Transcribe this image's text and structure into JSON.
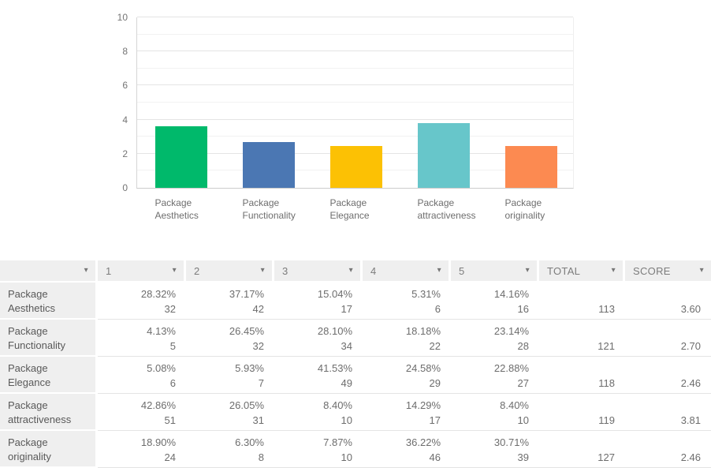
{
  "chart_data": {
    "type": "bar",
    "title": "",
    "xlabel": "",
    "ylabel": "",
    "categories": [
      "Package Aesthetics",
      "Package Functionality",
      "Package Elegance",
      "Package attractiveness",
      "Package originality"
    ],
    "values": [
      3.6,
      2.7,
      2.46,
      3.81,
      2.46
    ],
    "bar_colors": [
      "#00b96b",
      "#4b77b3",
      "#fcc104",
      "#67c6ca",
      "#fc8a51"
    ],
    "ylim": [
      0,
      10
    ],
    "yticks": [
      0,
      2,
      4,
      6,
      8,
      10
    ],
    "grid": "horizontal major+minor",
    "legend_position": "none"
  },
  "table": {
    "dropdown_icon": "▾",
    "headers": [
      "",
      "1",
      "2",
      "3",
      "4",
      "5",
      "TOTAL",
      "SCORE"
    ],
    "rows": [
      {
        "label": "Package Aesthetics",
        "ratings": [
          {
            "pct": "28.32%",
            "count": "32"
          },
          {
            "pct": "37.17%",
            "count": "42"
          },
          {
            "pct": "15.04%",
            "count": "17"
          },
          {
            "pct": "5.31%",
            "count": "6"
          },
          {
            "pct": "14.16%",
            "count": "16"
          }
        ],
        "total": "113",
        "score": "3.60"
      },
      {
        "label": "Package Functionality",
        "ratings": [
          {
            "pct": "4.13%",
            "count": "5"
          },
          {
            "pct": "26.45%",
            "count": "32"
          },
          {
            "pct": "28.10%",
            "count": "34"
          },
          {
            "pct": "18.18%",
            "count": "22"
          },
          {
            "pct": "23.14%",
            "count": "28"
          }
        ],
        "total": "121",
        "score": "2.70"
      },
      {
        "label": "Package Elegance",
        "ratings": [
          {
            "pct": "5.08%",
            "count": "6"
          },
          {
            "pct": "5.93%",
            "count": "7"
          },
          {
            "pct": "41.53%",
            "count": "49"
          },
          {
            "pct": "24.58%",
            "count": "29"
          },
          {
            "pct": "22.88%",
            "count": "27"
          }
        ],
        "total": "118",
        "score": "2.46"
      },
      {
        "label": "Package attractiveness",
        "ratings": [
          {
            "pct": "42.86%",
            "count": "51"
          },
          {
            "pct": "26.05%",
            "count": "31"
          },
          {
            "pct": "8.40%",
            "count": "10"
          },
          {
            "pct": "14.29%",
            "count": "17"
          },
          {
            "pct": "8.40%",
            "count": "10"
          }
        ],
        "total": "119",
        "score": "3.81"
      },
      {
        "label": "Package originality",
        "ratings": [
          {
            "pct": "18.90%",
            "count": "24"
          },
          {
            "pct": "6.30%",
            "count": "8"
          },
          {
            "pct": "7.87%",
            "count": "10"
          },
          {
            "pct": "36.22%",
            "count": "46"
          },
          {
            "pct": "30.71%",
            "count": "39"
          }
        ],
        "total": "127",
        "score": "2.46"
      }
    ]
  },
  "colors": {
    "header_bg": "#efefef",
    "row_border": "#e4e4e4",
    "axis_text": "#757575"
  }
}
